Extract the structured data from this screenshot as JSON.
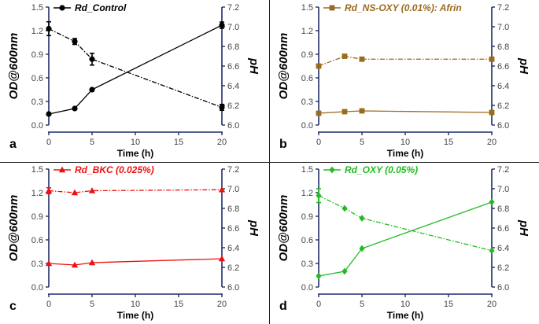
{
  "chart_data": [
    {
      "type": "line",
      "panel_label": "a",
      "legend": "Rd_Control",
      "color": "#000000",
      "marker": "circle",
      "xlabel": "Time (h)",
      "ylabel": "OD@600nm",
      "y2label": "pH",
      "xlim": [
        0,
        20
      ],
      "ylim": [
        0,
        1.5
      ],
      "y2lim": [
        6.0,
        7.2
      ],
      "x_ticks": [
        "0",
        "5",
        "10",
        "15",
        "20"
      ],
      "y_ticks": [
        "0.0",
        "0.3",
        "0.6",
        "0.9",
        "1.2",
        "1.5"
      ],
      "y2_ticks": [
        "6.0",
        "6.2",
        "6.4",
        "6.6",
        "6.8",
        "7.0",
        "7.2"
      ],
      "series": [
        {
          "name": "OD@600nm",
          "axis": "left",
          "style": "solid",
          "x": [
            0,
            3,
            5,
            20
          ],
          "values": [
            0.14,
            0.21,
            0.45,
            1.27
          ],
          "errors": [
            0,
            0,
            0,
            0.04
          ]
        },
        {
          "name": "pH",
          "axis": "right",
          "style": "dashdot",
          "x": [
            0,
            3,
            5,
            20
          ],
          "values": [
            6.98,
            6.85,
            6.67,
            6.18
          ],
          "errors": [
            0.07,
            0.03,
            0.06,
            0.03
          ]
        }
      ]
    },
    {
      "type": "line",
      "panel_label": "b",
      "legend": "Rd_NS-OXY (0.01%): Afrin",
      "color": "#9a6a1e",
      "marker": "square",
      "xlabel": "Time (h)",
      "ylabel": "OD@600nm",
      "y2label": "pH",
      "xlim": [
        0,
        20
      ],
      "ylim": [
        0,
        1.5
      ],
      "y2lim": [
        6.0,
        7.2
      ],
      "x_ticks": [
        "0",
        "5",
        "10",
        "15",
        "20"
      ],
      "y_ticks": [
        "0.0",
        "0.3",
        "0.6",
        "0.9",
        "1.2",
        "1.5"
      ],
      "y2_ticks": [
        "6.0",
        "6.2",
        "6.4",
        "6.6",
        "6.8",
        "7.0",
        "7.2"
      ],
      "series": [
        {
          "name": "OD@600nm",
          "axis": "left",
          "style": "solid",
          "x": [
            0,
            3,
            5,
            20
          ],
          "values": [
            0.15,
            0.17,
            0.18,
            0.16
          ],
          "errors": [
            0,
            0,
            0,
            0
          ]
        },
        {
          "name": "pH",
          "axis": "right",
          "style": "dashdot",
          "x": [
            0,
            3,
            5,
            20
          ],
          "values": [
            6.6,
            6.7,
            6.67,
            6.67
          ],
          "errors": [
            0,
            0,
            0,
            0
          ]
        }
      ]
    },
    {
      "type": "line",
      "panel_label": "c",
      "legend": "Rd_BKC (0.025%)",
      "color": "#ee1111",
      "marker": "triangle",
      "xlabel": "Time (h)",
      "ylabel": "OD@600nm",
      "y2label": "pH",
      "xlim": [
        0,
        20
      ],
      "ylim": [
        0,
        1.5
      ],
      "y2lim": [
        6.0,
        7.2
      ],
      "x_ticks": [
        "0",
        "5",
        "10",
        "15",
        "20"
      ],
      "y_ticks": [
        "0.0",
        "0.3",
        "0.6",
        "0.9",
        "1.2",
        "1.5"
      ],
      "y2_ticks": [
        "6.0",
        "6.2",
        "6.4",
        "6.6",
        "6.8",
        "7.0",
        "7.2"
      ],
      "series": [
        {
          "name": "OD@600nm",
          "axis": "left",
          "style": "solid",
          "x": [
            0,
            3,
            5,
            20
          ],
          "values": [
            0.3,
            0.28,
            0.31,
            0.36
          ],
          "errors": [
            0,
            0,
            0,
            0
          ]
        },
        {
          "name": "pH",
          "axis": "right",
          "style": "dashdot",
          "x": [
            0,
            3,
            5,
            20
          ],
          "values": [
            6.98,
            6.96,
            6.98,
            6.99
          ],
          "errors": [
            0.03,
            0,
            0,
            0
          ]
        }
      ]
    },
    {
      "type": "line",
      "panel_label": "d",
      "legend": "Rd_OXY (0.05%)",
      "color": "#22bb22",
      "marker": "diamond",
      "xlabel": "Time (h)",
      "ylabel": "OD@600nm",
      "y2label": "pH",
      "xlim": [
        0,
        20
      ],
      "ylim": [
        0,
        1.5
      ],
      "y2lim": [
        6.0,
        7.2
      ],
      "x_ticks": [
        "0",
        "5",
        "10",
        "15",
        "20"
      ],
      "y_ticks": [
        "0.0",
        "0.3",
        "0.6",
        "0.9",
        "1.2",
        "1.5"
      ],
      "y2_ticks": [
        "6.0",
        "6.2",
        "6.4",
        "6.6",
        "6.8",
        "7.0",
        "7.2"
      ],
      "series": [
        {
          "name": "OD@600nm",
          "axis": "left",
          "style": "solid",
          "x": [
            0,
            3,
            5,
            20
          ],
          "values": [
            0.14,
            0.2,
            0.49,
            1.08
          ],
          "errors": [
            0,
            0,
            0,
            0
          ]
        },
        {
          "name": "pH",
          "axis": "right",
          "style": "dashdot",
          "x": [
            0,
            3,
            5,
            20
          ],
          "values": [
            6.93,
            6.8,
            6.7,
            6.37
          ],
          "errors": [
            0.07,
            0,
            0,
            0
          ]
        }
      ]
    }
  ],
  "axis_color": "#1f2d6b"
}
